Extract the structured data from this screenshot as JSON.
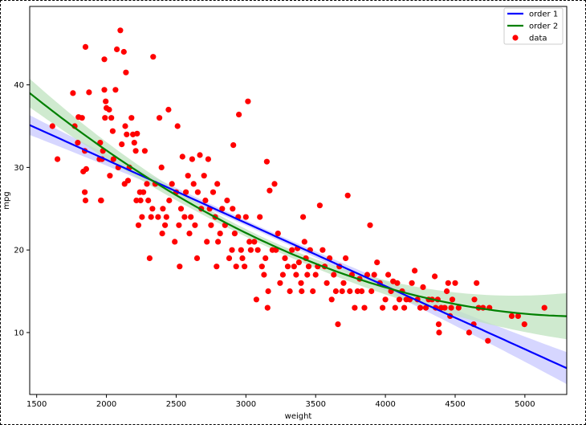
{
  "chart_data": {
    "type": "scatter",
    "xlabel": "weight",
    "ylabel": "mpg",
    "xlim": [
      1450,
      5300
    ],
    "ylim": [
      2.5,
      49.5
    ],
    "xticks": [
      1500,
      2000,
      2500,
      3000,
      3500,
      4000,
      4500,
      5000
    ],
    "yticks": [
      10,
      20,
      30,
      40
    ],
    "grid": false,
    "legend_position": "top-right",
    "legend": [
      "order 1",
      "order 2",
      "data"
    ],
    "fits": [
      {
        "name": "order 1",
        "color": "#0000ff",
        "band_color": "#c8c8ff",
        "coef": [
          46.217,
          -0.007647
        ],
        "ci": 0.9
      },
      {
        "name": "order 2",
        "color": "#008000",
        "band_color": "#bfe3bf",
        "coef": [
          62.2555,
          -0.018496,
          1.7e-06
        ],
        "ci": 1.3
      }
    ],
    "scatter": {
      "name": "data",
      "color": "#ff0000",
      "points": [
        [
          1613,
          35
        ],
        [
          1649,
          31
        ],
        [
          1760,
          39
        ],
        [
          1773,
          35
        ],
        [
          1795,
          33
        ],
        [
          1800,
          36.1
        ],
        [
          1825,
          36
        ],
        [
          1834,
          29.5
        ],
        [
          1845,
          32
        ],
        [
          1850,
          26
        ],
        [
          1845,
          27
        ],
        [
          1850,
          44.6
        ],
        [
          1855,
          29.8
        ],
        [
          1875,
          39.1
        ],
        [
          1950,
          31
        ],
        [
          1955,
          33
        ],
        [
          1960,
          26
        ],
        [
          1963,
          26
        ],
        [
          1968,
          31
        ],
        [
          1975,
          32
        ],
        [
          1985,
          43.1
        ],
        [
          1985,
          39.4
        ],
        [
          1990,
          36
        ],
        [
          1995,
          38
        ],
        [
          2000,
          37.2
        ],
        [
          2020,
          37
        ],
        [
          2025,
          29
        ],
        [
          2035,
          36
        ],
        [
          2045,
          34.4
        ],
        [
          2050,
          31
        ],
        [
          2065,
          39.4
        ],
        [
          2075,
          44.3
        ],
        [
          2085,
          30
        ],
        [
          2100,
          46.6
        ],
        [
          2110,
          32.8
        ],
        [
          2125,
          44
        ],
        [
          2130,
          28
        ],
        [
          2135,
          35
        ],
        [
          2140,
          41.5
        ],
        [
          2145,
          34
        ],
        [
          2155,
          28.4
        ],
        [
          2165,
          30
        ],
        [
          2180,
          36
        ],
        [
          2190,
          34
        ],
        [
          2200,
          33
        ],
        [
          2210,
          32
        ],
        [
          2215,
          26
        ],
        [
          2220,
          34.1
        ],
        [
          2230,
          23
        ],
        [
          2240,
          27
        ],
        [
          2245,
          26
        ],
        [
          2255,
          24
        ],
        [
          2265,
          27
        ],
        [
          2275,
          32
        ],
        [
          2290,
          28
        ],
        [
          2300,
          26
        ],
        [
          2310,
          19
        ],
        [
          2320,
          24
        ],
        [
          2330,
          25
        ],
        [
          2335,
          43.4
        ],
        [
          2350,
          28
        ],
        [
          2370,
          24
        ],
        [
          2380,
          36
        ],
        [
          2395,
          30
        ],
        [
          2400,
          22
        ],
        [
          2405,
          25
        ],
        [
          2420,
          23
        ],
        [
          2430,
          24
        ],
        [
          2445,
          37
        ],
        [
          2450,
          26
        ],
        [
          2470,
          28
        ],
        [
          2490,
          21
        ],
        [
          2500,
          27
        ],
        [
          2510,
          35
        ],
        [
          2520,
          23
        ],
        [
          2525,
          18
        ],
        [
          2535,
          25
        ],
        [
          2545,
          31.3
        ],
        [
          2560,
          24
        ],
        [
          2570,
          27
        ],
        [
          2585,
          29
        ],
        [
          2595,
          22
        ],
        [
          2605,
          24
        ],
        [
          2615,
          31
        ],
        [
          2625,
          28
        ],
        [
          2635,
          23
        ],
        [
          2650,
          19
        ],
        [
          2655,
          27
        ],
        [
          2670,
          31.5
        ],
        [
          2680,
          25
        ],
        [
          2700,
          29
        ],
        [
          2710,
          26
        ],
        [
          2720,
          21
        ],
        [
          2730,
          31
        ],
        [
          2740,
          25
        ],
        [
          2750,
          23
        ],
        [
          2765,
          27
        ],
        [
          2780,
          24
        ],
        [
          2790,
          18
        ],
        [
          2795,
          28
        ],
        [
          2800,
          21
        ],
        [
          2815,
          22
        ],
        [
          2830,
          25
        ],
        [
          2850,
          23
        ],
        [
          2865,
          26
        ],
        [
          2880,
          19
        ],
        [
          2900,
          20
        ],
        [
          2905,
          25
        ],
        [
          2910,
          32.7
        ],
        [
          2920,
          22
        ],
        [
          2930,
          18
        ],
        [
          2945,
          24
        ],
        [
          2950,
          36.4
        ],
        [
          2965,
          20
        ],
        [
          2975,
          19
        ],
        [
          2990,
          18
        ],
        [
          3000,
          24
        ],
        [
          3015,
          38
        ],
        [
          3025,
          21
        ],
        [
          3035,
          20
        ],
        [
          3060,
          21
        ],
        [
          3075,
          14
        ],
        [
          3085,
          20
        ],
        [
          3100,
          24
        ],
        [
          3115,
          18
        ],
        [
          3130,
          17
        ],
        [
          3140,
          19
        ],
        [
          3150,
          30.7
        ],
        [
          3155,
          13
        ],
        [
          3160,
          15
        ],
        [
          3170,
          27.2
        ],
        [
          3190,
          20
        ],
        [
          3205,
          28
        ],
        [
          3215,
          20
        ],
        [
          3230,
          22
        ],
        [
          3245,
          16
        ],
        [
          3265,
          17
        ],
        [
          3280,
          19
        ],
        [
          3300,
          18
        ],
        [
          3315,
          15
        ],
        [
          3330,
          20
        ],
        [
          3345,
          18
        ],
        [
          3360,
          17
        ],
        [
          3370,
          20.2
        ],
        [
          3380,
          18.5
        ],
        [
          3395,
          16
        ],
        [
          3400,
          15
        ],
        [
          3410,
          24
        ],
        [
          3420,
          21
        ],
        [
          3430,
          19
        ],
        [
          3440,
          17
        ],
        [
          3450,
          18
        ],
        [
          3460,
          20
        ],
        [
          3480,
          15
        ],
        [
          3500,
          17
        ],
        [
          3515,
          18
        ],
        [
          3530,
          25.4
        ],
        [
          3550,
          20
        ],
        [
          3565,
          18
        ],
        [
          3580,
          16
        ],
        [
          3600,
          19
        ],
        [
          3615,
          14
        ],
        [
          3630,
          17
        ],
        [
          3645,
          15
        ],
        [
          3660,
          11
        ],
        [
          3670,
          18
        ],
        [
          3690,
          15
        ],
        [
          3700,
          16
        ],
        [
          3715,
          19
        ],
        [
          3730,
          26.6
        ],
        [
          3745,
          15
        ],
        [
          3760,
          17
        ],
        [
          3780,
          13
        ],
        [
          3800,
          15
        ],
        [
          3815,
          16.5
        ],
        [
          3830,
          15
        ],
        [
          3850,
          13
        ],
        [
          3870,
          17
        ],
        [
          3890,
          23
        ],
        [
          3900,
          15
        ],
        [
          3920,
          17
        ],
        [
          3940,
          18.5
        ],
        [
          3960,
          16
        ],
        [
          3980,
          13
        ],
        [
          4000,
          14
        ],
        [
          4020,
          17
        ],
        [
          4040,
          15
        ],
        [
          4055,
          16.2
        ],
        [
          4070,
          13
        ],
        [
          4085,
          16
        ],
        [
          4100,
          14
        ],
        [
          4120,
          15
        ],
        [
          4135,
          13
        ],
        [
          4150,
          14
        ],
        [
          4175,
          14
        ],
        [
          4190,
          16
        ],
        [
          4210,
          17.5
        ],
        [
          4230,
          14
        ],
        [
          4250,
          13
        ],
        [
          4270,
          15.5
        ],
        [
          4290,
          13
        ],
        [
          4310,
          14
        ],
        [
          4335,
          14
        ],
        [
          4354,
          16.8
        ],
        [
          4360,
          13
        ],
        [
          4375,
          14
        ],
        [
          4382,
          11
        ],
        [
          4385,
          10
        ],
        [
          4400,
          13
        ],
        [
          4425,
          13
        ],
        [
          4440,
          15
        ],
        [
          4450,
          16
        ],
        [
          4464,
          12
        ],
        [
          4472,
          13
        ],
        [
          4480,
          14
        ],
        [
          4500,
          16
        ],
        [
          4525,
          13
        ],
        [
          4600,
          10
        ],
        [
          4633,
          11
        ],
        [
          4638,
          14
        ],
        [
          4654,
          16
        ],
        [
          4668,
          13
        ],
        [
          4700,
          13
        ],
        [
          4735,
          9
        ],
        [
          4746,
          13
        ],
        [
          4906,
          12
        ],
        [
          4951,
          12
        ],
        [
          4997,
          11
        ],
        [
          5140,
          13
        ]
      ]
    }
  }
}
